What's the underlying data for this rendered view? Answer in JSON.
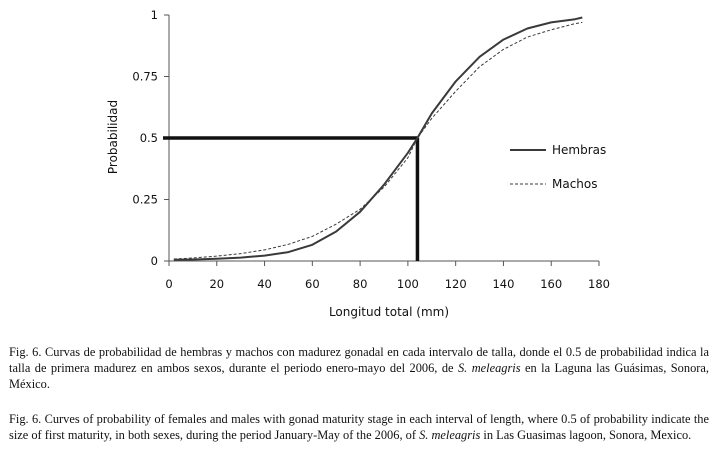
{
  "chart_data": {
    "type": "line",
    "title": "",
    "xlabel": "Longitud total (mm)",
    "ylabel": "Probabilidad",
    "xlim": [
      0,
      180
    ],
    "ylim": [
      0,
      1
    ],
    "x_ticks": [
      "0",
      "20",
      "40",
      "60",
      "80",
      "100",
      "120",
      "140",
      "160",
      "180"
    ],
    "y_ticks": [
      "0",
      "0.25",
      "0.5",
      "0.75",
      "1"
    ],
    "grid": false,
    "legend_position": "right",
    "x": [
      2,
      10,
      20,
      30,
      40,
      50,
      60,
      70,
      80,
      90,
      100,
      104,
      110,
      120,
      130,
      140,
      150,
      160,
      170,
      173
    ],
    "series": [
      {
        "name": "Hembras",
        "line_style": "solid",
        "color": "#3a3a3a",
        "values": [
          0.005,
          0.006,
          0.009,
          0.014,
          0.022,
          0.036,
          0.066,
          0.12,
          0.2,
          0.31,
          0.44,
          0.5,
          0.6,
          0.73,
          0.83,
          0.9,
          0.945,
          0.97,
          0.983,
          0.99
        ]
      },
      {
        "name": "Machos",
        "line_style": "dashed",
        "color": "#3a3a3a",
        "values": [
          0.008,
          0.012,
          0.02,
          0.03,
          0.045,
          0.068,
          0.1,
          0.15,
          0.21,
          0.3,
          0.42,
          0.5,
          0.58,
          0.69,
          0.79,
          0.86,
          0.91,
          0.94,
          0.965,
          0.97
        ]
      }
    ],
    "reference_point": {
      "x": 104,
      "y": 0.5
    }
  },
  "captions": {
    "spanish_prefix": "Fig. 6. Curvas de probabilidad de hembras y machos con madurez gonadal en cada intervalo de talla, donde el 0.5 de probabilidad indica la talla de primera madurez en ambos sexos, durante el periodo enero-mayo del 2006, de ",
    "spanish_species": "S. meleagris",
    "spanish_suffix": " en la Laguna las Guásimas, Sonora, México.",
    "english_prefix": "Fig. 6. Curves of probability of females and males with gonad maturity stage in each interval of length, where 0.5 of probability indicate the size of first maturity, in both sexes, during the period January-May of the 2006, of ",
    "english_species": "S. meleagris",
    "english_suffix": " in Las Guasimas lagoon, Sonora, Mexico."
  }
}
